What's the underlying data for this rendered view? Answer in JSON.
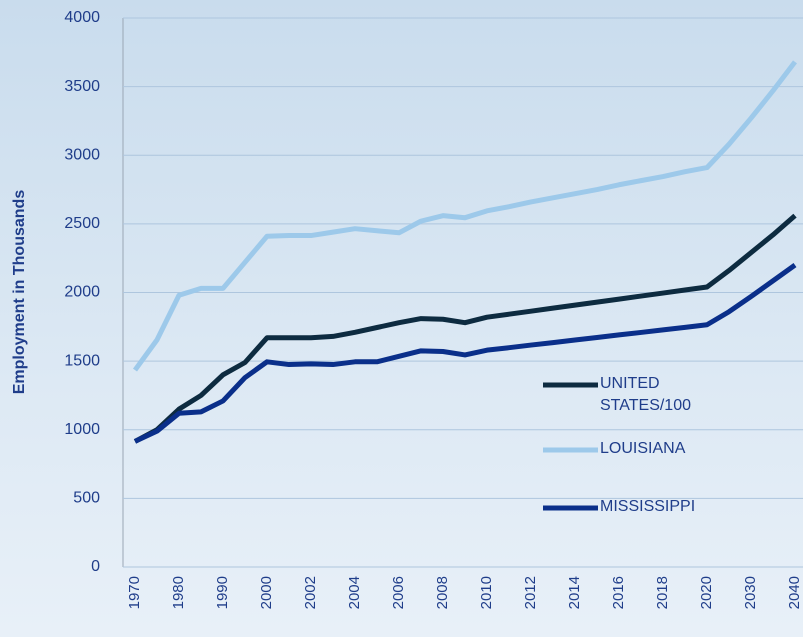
{
  "chart_data": {
    "type": "line",
    "y_label": "Employment in Thousands",
    "categories": [
      "1970",
      null,
      "1980",
      null,
      "1990",
      null,
      "2000",
      null,
      "2002",
      null,
      "2004",
      null,
      "2006",
      null,
      "2008",
      null,
      "2010",
      null,
      "2012",
      null,
      "2014",
      null,
      "2016",
      null,
      "2018",
      null,
      "2020",
      null,
      "2030",
      null,
      "2040"
    ],
    "series": [
      {
        "name": "UNITED STATES/100",
        "color": "#0d2b40",
        "values": [
          915,
          1000,
          1150,
          1250,
          1400,
          1490,
          1670,
          1670,
          1670,
          1680,
          1710,
          1745,
          1780,
          1810,
          1805,
          1780,
          1820,
          1842,
          1864,
          1886,
          1908,
          1930,
          1952,
          1974,
          1996,
          2018,
          2040,
          2160,
          2290,
          2420,
          2560
        ]
      },
      {
        "name": "LOUISIANA",
        "color": "#9dc9ea",
        "values": [
          1435,
          1655,
          1980,
          2030,
          2030,
          2220,
          2410,
          2415,
          2415,
          2440,
          2465,
          2450,
          2435,
          2520,
          2560,
          2545,
          2595,
          2625,
          2660,
          2690,
          2720,
          2750,
          2785,
          2815,
          2845,
          2880,
          2910,
          3080,
          3270,
          3470,
          3680
        ]
      },
      {
        "name": "MISSISSIPPI",
        "color": "#0a2f8a",
        "values": [
          915,
          990,
          1120,
          1130,
          1210,
          1380,
          1495,
          1475,
          1480,
          1475,
          1495,
          1495,
          1535,
          1575,
          1570,
          1545,
          1580,
          1598,
          1617,
          1635,
          1654,
          1672,
          1691,
          1709,
          1728,
          1746,
          1765,
          1860,
          1970,
          2085,
          2200
        ]
      }
    ],
    "ylim": [
      0,
      4000
    ],
    "yticks": [
      0,
      500,
      1000,
      1500,
      2000,
      2500,
      3000,
      3500,
      4000
    ],
    "grid": true
  }
}
